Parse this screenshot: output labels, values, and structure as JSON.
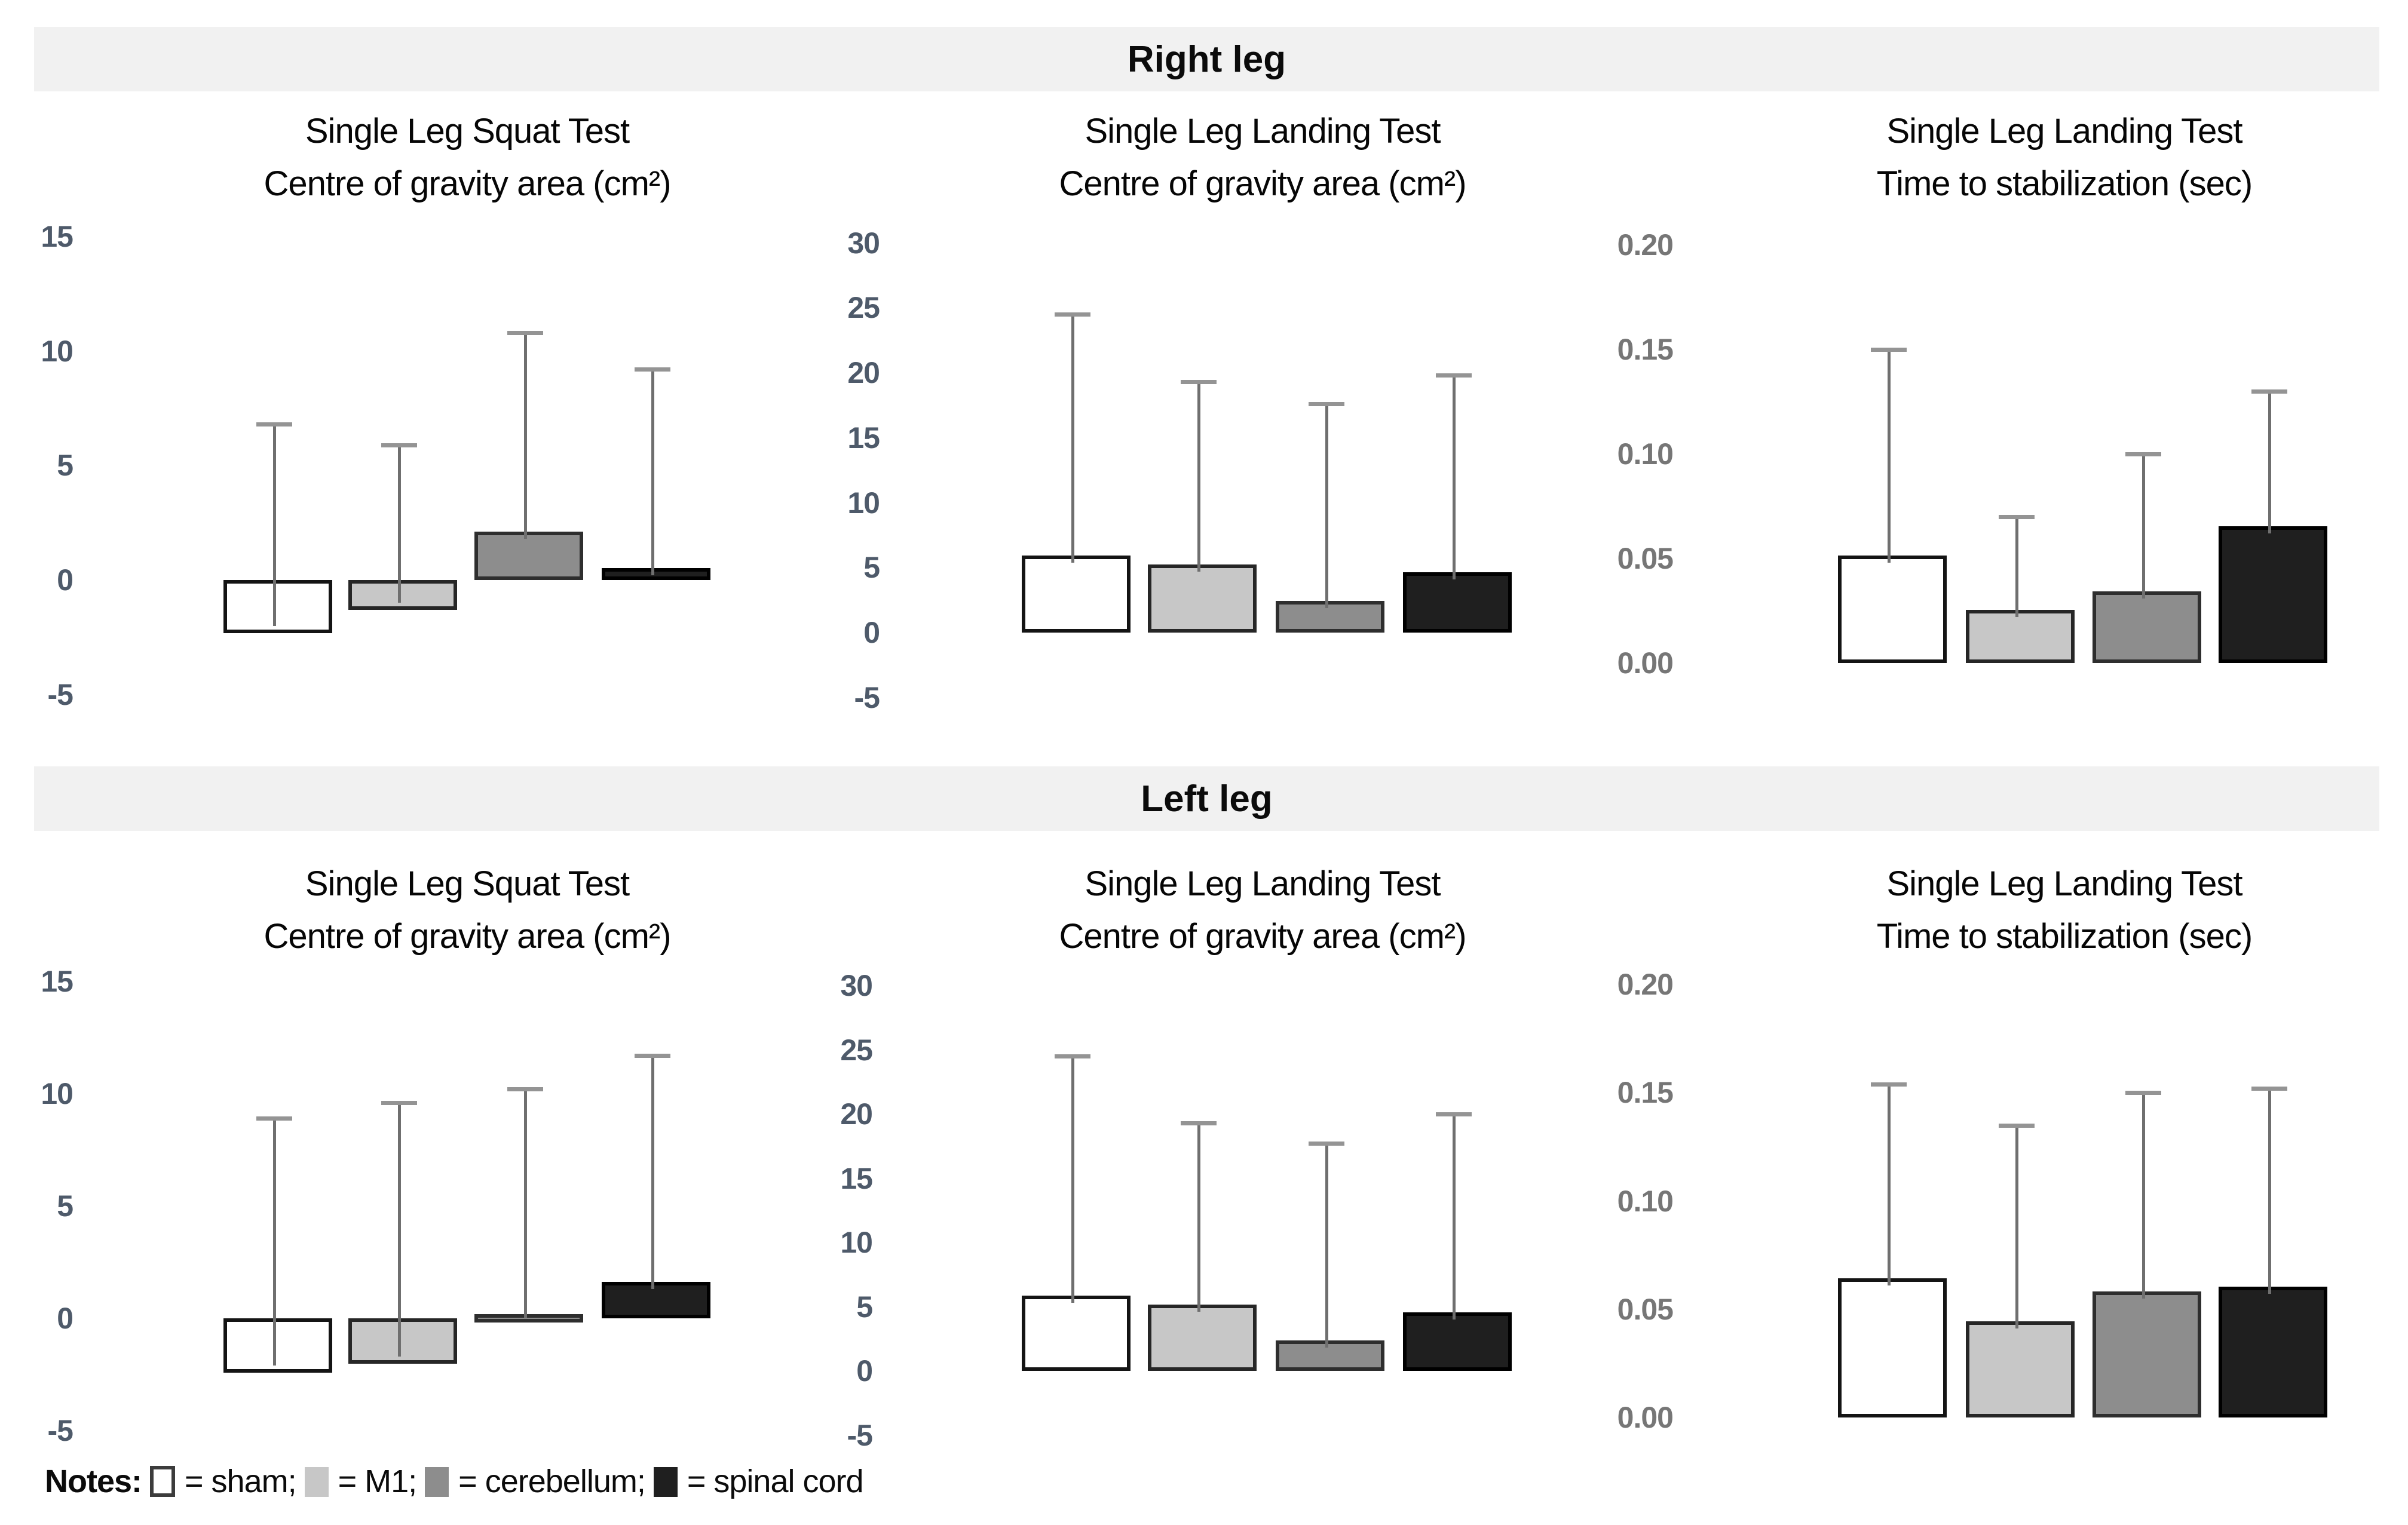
{
  "figure": {
    "sections": [
      {
        "label": "Right leg"
      },
      {
        "label": "Left leg"
      }
    ],
    "groups": [
      {
        "name": "sham",
        "fill": "#ffffff",
        "border": "#141414"
      },
      {
        "name": "M1",
        "fill": "#c7c7c7",
        "border": "#262626"
      },
      {
        "name": "cerebellum",
        "fill": "#8d8d8d",
        "border": "#2e2e2e"
      },
      {
        "name": "spinal cord",
        "fill": "#1f1f1f",
        "border": "#000000"
      }
    ],
    "notes": {
      "label": "Notes:",
      "items": [
        {
          "name": "sham"
        },
        {
          "name": "M1"
        },
        {
          "name": "cerebellum"
        },
        {
          "name": "spinal cord"
        }
      ]
    },
    "colors": {
      "band_bg": "#f1f1f1",
      "error_bar_line": "#6f6f6f",
      "error_bar_cap": "#949494",
      "tick_label_cog": "#4e5a6a",
      "tick_label_time": "#767676",
      "title_text": "#060606"
    }
  },
  "chart_data": [
    {
      "type": "bar",
      "section": "Right leg",
      "title": "Single Leg Squat Test — Centre of gravity area (cm²)",
      "title_lines": [
        "Single Leg Squat Test",
        "Centre of gravity area (cm²)"
      ],
      "categories": [
        "sham",
        "M1",
        "cerebellum",
        "spinal cord"
      ],
      "values": [
        -2.0,
        -1.0,
        1.8,
        0.2
      ],
      "error_tops": [
        6.8,
        5.9,
        10.8,
        9.2
      ],
      "yticks": [
        15,
        10,
        5,
        0,
        -5
      ],
      "ytick_labels": [
        "15",
        "10",
        "5",
        "0",
        "-5"
      ],
      "ylim": [
        -5,
        15
      ],
      "xlabel": "",
      "ylabel": "",
      "grid": false,
      "legend": false
    },
    {
      "type": "bar",
      "section": "Right leg",
      "title": "Single Leg Landing Test — Centre of gravity area (cm²)",
      "title_lines": [
        "Single Leg Landing Test",
        "Centre of gravity area (cm²)"
      ],
      "categories": [
        "sham",
        "M1",
        "cerebellum",
        "spinal cord"
      ],
      "values": [
        5.4,
        4.7,
        1.9,
        4.1
      ],
      "error_tops": [
        24.5,
        19.3,
        17.6,
        19.8
      ],
      "yticks": [
        30,
        25,
        20,
        15,
        10,
        5,
        0,
        -5
      ],
      "ytick_labels": [
        "30",
        "25",
        "20",
        "15",
        "10",
        "5",
        "0",
        "-5"
      ],
      "ylim": [
        -5,
        30
      ],
      "xlabel": "",
      "ylabel": "",
      "grid": false,
      "legend": false
    },
    {
      "type": "bar",
      "section": "Right leg",
      "title": "Single Leg Landing Test — Time to stabilization (sec)",
      "title_lines": [
        "Single Leg Landing Test",
        "Time to stabilization (sec)"
      ],
      "categories": [
        "sham",
        "M1",
        "cerebellum",
        "spinal cord"
      ],
      "values": [
        0.048,
        0.022,
        0.031,
        0.062
      ],
      "error_tops": [
        0.15,
        0.07,
        0.1,
        0.13
      ],
      "yticks": [
        0.2,
        0.15,
        0.1,
        0.05,
        0.0
      ],
      "ytick_labels": [
        "0.20",
        "0.15",
        "0.10",
        "0.05",
        "0.00"
      ],
      "ylim": [
        0,
        0.2
      ],
      "xlabel": "",
      "ylabel": "",
      "grid": false,
      "legend": false
    },
    {
      "type": "bar",
      "section": "Left leg",
      "title": "Single Leg Squat Test — Centre of gravity area (cm²)",
      "title_lines": [
        "Single Leg Squat Test",
        "Centre of gravity area (cm²)"
      ],
      "categories": [
        "sham",
        "M1",
        "cerebellum",
        "spinal cord"
      ],
      "values": [
        -2.1,
        -1.7,
        0.0,
        1.3
      ],
      "error_tops": [
        8.9,
        9.6,
        10.2,
        11.7
      ],
      "yticks": [
        15,
        10,
        5,
        0,
        -5
      ],
      "ytick_labels": [
        "15",
        "10",
        "5",
        "0",
        "-5"
      ],
      "ylim": [
        -5,
        15
      ],
      "xlabel": "",
      "ylabel": "",
      "grid": false,
      "legend": false
    },
    {
      "type": "bar",
      "section": "Left leg",
      "title": "Single Leg Landing Test — Centre of gravity area (cm²)",
      "title_lines": [
        "Single Leg Landing Test",
        "Centre of gravity area (cm²)"
      ],
      "categories": [
        "sham",
        "M1",
        "cerebellum",
        "spinal cord"
      ],
      "values": [
        5.3,
        4.6,
        1.8,
        4.0
      ],
      "error_tops": [
        24.5,
        19.3,
        17.7,
        20.0
      ],
      "yticks": [
        30,
        25,
        20,
        15,
        10,
        5,
        0,
        -5
      ],
      "ytick_labels": [
        "30",
        "25",
        "20",
        "15",
        "10",
        "5",
        "0",
        "-5"
      ],
      "ylim": [
        -5,
        30
      ],
      "xlabel": "",
      "ylabel": "",
      "grid": false,
      "legend": false
    },
    {
      "type": "bar",
      "section": "Left leg",
      "title": "Single Leg Landing Test — Time to stabilization (sec)",
      "title_lines": [
        "Single Leg Landing Test",
        "Time to stabilization (sec)"
      ],
      "categories": [
        "sham",
        "M1",
        "cerebellum",
        "spinal cord"
      ],
      "values": [
        0.061,
        0.041,
        0.055,
        0.057
      ],
      "error_tops": [
        0.154,
        0.135,
        0.15,
        0.152
      ],
      "yticks": [
        0.2,
        0.15,
        0.1,
        0.05,
        0.0
      ],
      "ytick_labels": [
        "0.20",
        "0.15",
        "0.10",
        "0.05",
        "0.00"
      ],
      "ylim": [
        0,
        0.2
      ],
      "xlabel": "",
      "ylabel": "",
      "grid": false,
      "legend": false
    }
  ]
}
